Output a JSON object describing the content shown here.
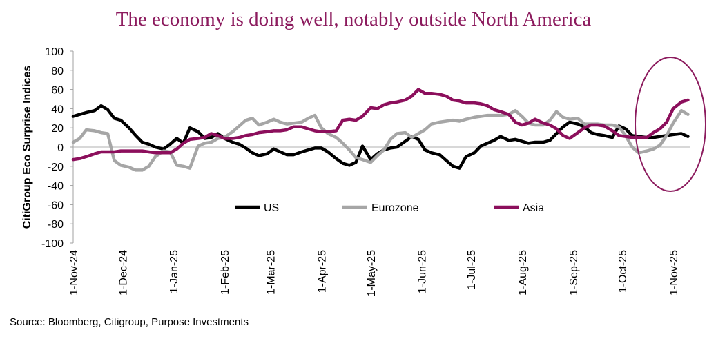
{
  "chart_data": {
    "type": "line",
    "title": "The economy is doing well, notably outside North America",
    "xlabel": "",
    "ylabel": "CitiGroup Eco Surprise Indices",
    "ylim": [
      -100,
      100
    ],
    "yticks": [
      100,
      80,
      60,
      40,
      20,
      0,
      -20,
      -40,
      -60,
      -80,
      -100
    ],
    "xlim": [
      "2024-11-01",
      "2025-11-10"
    ],
    "xticks": [
      {
        "date": "2024-11-01",
        "label": "1-Nov-24"
      },
      {
        "date": "2024-12-01",
        "label": "1-Dec-24"
      },
      {
        "date": "2025-01-01",
        "label": "1-Jan-25"
      },
      {
        "date": "2025-02-01",
        "label": "1-Feb-25"
      },
      {
        "date": "2025-03-01",
        "label": "1-Mar-25"
      },
      {
        "date": "2025-04-01",
        "label": "1-Apr-25"
      },
      {
        "date": "2025-05-01",
        "label": "1-May-25"
      },
      {
        "date": "2025-06-01",
        "label": "1-Jun-25"
      },
      {
        "date": "2025-07-01",
        "label": "1-Jul-25"
      },
      {
        "date": "2025-08-01",
        "label": "1-Aug-25"
      },
      {
        "date": "2025-09-01",
        "label": "1-Sep-25"
      },
      {
        "date": "2025-10-01",
        "label": "1-Oct-25"
      },
      {
        "date": "2025-11-01",
        "label": "1-Nov-25"
      }
    ],
    "grid": false,
    "legend_placement": "bottom-center",
    "annotation": "ellipse highlighting October–November 2025",
    "x": [
      "2024-11-01",
      "2024-11-05",
      "2024-11-09",
      "2024-11-14",
      "2024-11-18",
      "2024-11-22",
      "2024-11-26",
      "2024-11-30",
      "2024-12-05",
      "2024-12-09",
      "2024-12-13",
      "2024-12-17",
      "2024-12-21",
      "2024-12-26",
      "2024-12-30",
      "2025-01-03",
      "2025-01-07",
      "2025-01-11",
      "2025-01-16",
      "2025-01-20",
      "2025-01-24",
      "2025-01-28",
      "2025-02-01",
      "2025-02-06",
      "2025-02-10",
      "2025-02-14",
      "2025-02-18",
      "2025-02-22",
      "2025-02-27",
      "2025-03-03",
      "2025-03-07",
      "2025-03-11",
      "2025-03-15",
      "2025-03-20",
      "2025-03-24",
      "2025-03-28",
      "2025-04-01",
      "2025-04-05",
      "2025-04-10",
      "2025-04-14",
      "2025-04-18",
      "2025-04-22",
      "2025-04-26",
      "2025-05-01",
      "2025-05-05",
      "2025-05-09",
      "2025-05-13",
      "2025-05-17",
      "2025-05-22",
      "2025-05-26",
      "2025-05-30",
      "2025-06-03",
      "2025-06-07",
      "2025-06-12",
      "2025-06-16",
      "2025-06-20",
      "2025-06-24",
      "2025-06-28",
      "2025-07-03",
      "2025-07-07",
      "2025-07-11",
      "2025-07-15",
      "2025-07-19",
      "2025-07-24",
      "2025-07-28",
      "2025-08-01",
      "2025-08-05",
      "2025-08-09",
      "2025-08-14",
      "2025-08-18",
      "2025-08-22",
      "2025-08-26",
      "2025-08-30",
      "2025-09-04",
      "2025-09-08",
      "2025-09-12",
      "2025-09-16",
      "2025-09-20",
      "2025-09-25",
      "2025-09-29",
      "2025-10-03",
      "2025-10-07",
      "2025-10-11",
      "2025-10-16",
      "2025-10-20",
      "2025-10-24",
      "2025-10-28",
      "2025-11-01",
      "2025-11-06",
      "2025-11-10"
    ],
    "series": [
      {
        "name": "US",
        "color": "#000000",
        "values": [
          32,
          34,
          36,
          38,
          43,
          39,
          30,
          28,
          20,
          12,
          5,
          3,
          0,
          -2,
          3,
          9,
          4,
          20,
          16,
          9,
          10,
          14,
          9,
          5,
          3,
          -1,
          -6,
          -9,
          -7,
          -2,
          -5,
          -8,
          -8,
          -5,
          -3,
          -1,
          -1,
          -5,
          -12,
          -17,
          -19,
          -16,
          1,
          -13,
          -7,
          -3,
          -1,
          0,
          6,
          11,
          8,
          -3,
          -6,
          -8,
          -14,
          -20,
          -22,
          -10,
          -6,
          1,
          4,
          7,
          11,
          7,
          8,
          6,
          4,
          5,
          5,
          7,
          14,
          21,
          26,
          24,
          21,
          15,
          13,
          12,
          10,
          22,
          19,
          12,
          11,
          10,
          10,
          11,
          12,
          13,
          14,
          11
        ]
      },
      {
        "name": "Eurozone",
        "color": "#a6a6a6",
        "values": [
          5,
          9,
          18,
          17,
          15,
          14,
          -14,
          -19,
          -21,
          -24,
          -24,
          -20,
          -10,
          -4,
          -5,
          -19,
          -20,
          -22,
          1,
          4,
          5,
          9,
          10,
          16,
          22,
          28,
          30,
          23,
          26,
          29,
          26,
          24,
          25,
          26,
          30,
          33,
          20,
          14,
          10,
          4,
          -3,
          -11,
          -13,
          -16,
          -9,
          -3,
          8,
          14,
          15,
          10,
          14,
          18,
          24,
          26,
          27,
          28,
          27,
          29,
          31,
          32,
          33,
          33,
          33,
          34,
          38,
          32,
          25,
          23,
          23,
          28,
          37,
          31,
          29,
          30,
          24,
          24,
          24,
          23,
          23,
          21,
          12,
          0,
          -6,
          -4,
          -2,
          2,
          12,
          25,
          38,
          34
        ]
      },
      {
        "name": "Asia",
        "color": "#8c0f5c",
        "values": [
          -13,
          -12,
          -10,
          -7,
          -5,
          -5,
          -5,
          -4,
          -4,
          -4,
          -4,
          -5,
          -6,
          -6,
          -6,
          -2,
          4,
          8,
          9,
          10,
          14,
          12,
          9,
          9,
          10,
          12,
          13,
          15,
          16,
          17,
          17,
          18,
          21,
          21,
          19,
          17,
          16,
          16,
          17,
          28,
          29,
          28,
          32,
          41,
          40,
          44,
          46,
          47,
          49,
          53,
          60,
          56,
          56,
          55,
          53,
          49,
          48,
          46,
          46,
          45,
          43,
          39,
          37,
          34,
          26,
          23,
          25,
          29,
          25,
          23,
          19,
          12,
          9,
          15,
          20,
          23,
          23,
          22,
          17,
          12,
          11,
          10,
          10,
          10,
          15,
          19,
          26,
          40,
          47,
          49
        ]
      }
    ]
  },
  "source": "Source: Bloomberg, Citigroup, Purpose Investments"
}
